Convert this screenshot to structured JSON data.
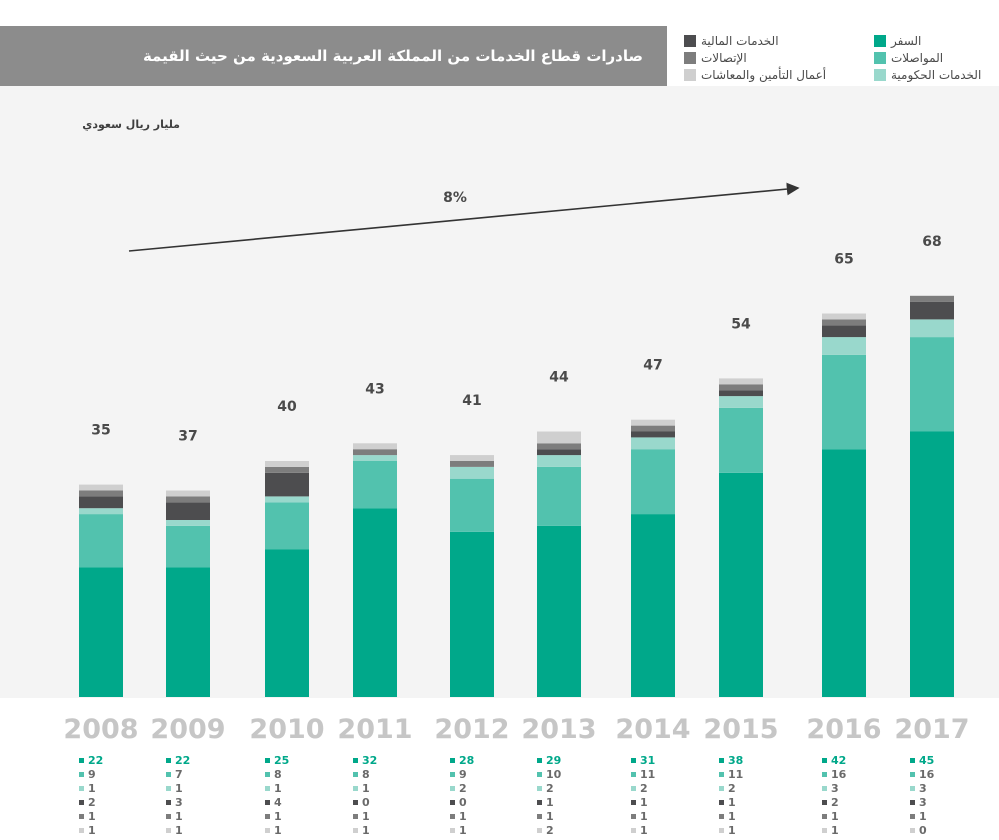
{
  "title": "صادرات قطاع الخدمات من المملكة العربية السعودية من حيث القيمة",
  "unit_label": "مليار ريال سعودي",
  "growth_label": "8%",
  "chart_data": {
    "type": "bar",
    "stacked": true,
    "title": "صادرات قطاع الخدمات من المملكة العربية السعودية من حيث القيمة",
    "ylabel": "مليار ريال سعودي",
    "categories": [
      "2008",
      "2009",
      "2010",
      "2011",
      "2012",
      "2013",
      "2014",
      "2015",
      "2016",
      "2017"
    ],
    "totals": [
      35,
      37,
      40,
      43,
      41,
      44,
      47,
      54,
      65,
      68
    ],
    "annotation": "8%",
    "grid": false,
    "legend_position": "top-right",
    "series": [
      {
        "name": "السفر",
        "color": "#00a88a",
        "values": [
          22,
          22,
          25,
          32,
          28,
          29,
          31,
          38,
          42,
          45
        ]
      },
      {
        "name": "المواصلات",
        "color": "#52c2ae",
        "values": [
          9,
          7,
          8,
          8,
          9,
          10,
          11,
          11,
          16,
          16
        ]
      },
      {
        "name": "الخدمات الحكومية",
        "color": "#99d8cc",
        "values": [
          1,
          1,
          1,
          1,
          2,
          2,
          2,
          2,
          3,
          3
        ]
      },
      {
        "name": "الخدمات المالية",
        "color": "#4d4d4f",
        "values": [
          2,
          3,
          4,
          0,
          0,
          1,
          1,
          1,
          2,
          3
        ]
      },
      {
        "name": "الإتصالات",
        "color": "#7d7d7d",
        "values": [
          1,
          1,
          1,
          1,
          1,
          1,
          1,
          1,
          1,
          1
        ]
      },
      {
        "name": "أعمال التأمين والمعاشات",
        "color": "#cfcfcf",
        "values": [
          1,
          1,
          1,
          1,
          1,
          2,
          1,
          1,
          1,
          0
        ]
      }
    ]
  }
}
